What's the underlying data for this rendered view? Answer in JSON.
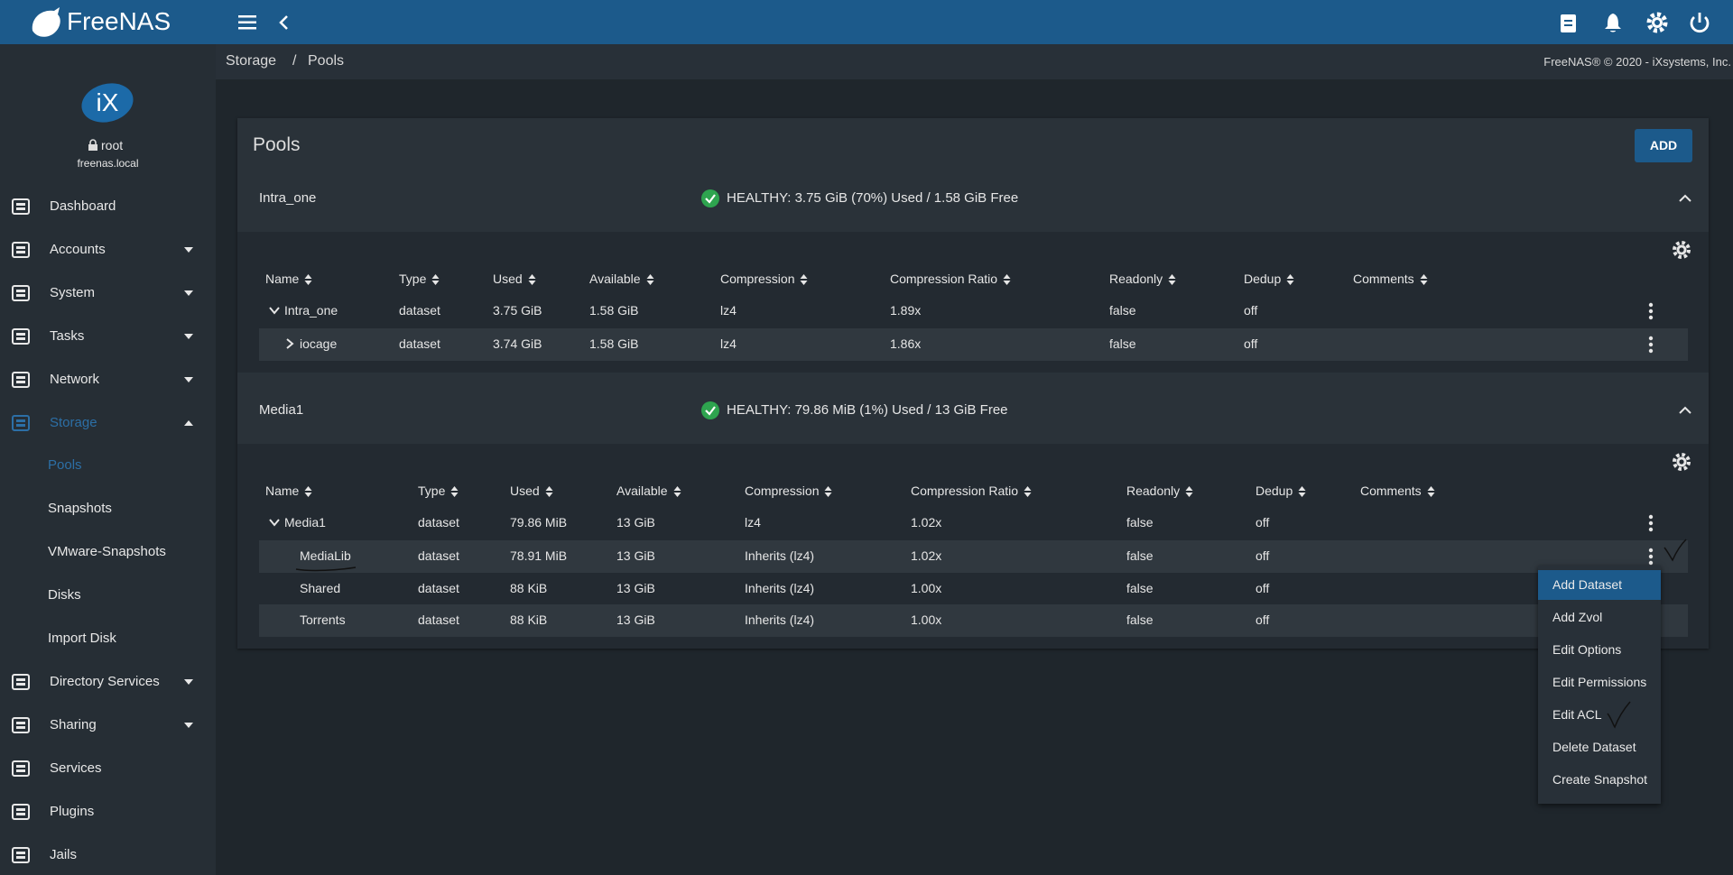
{
  "header": {
    "brand": "FreeNAS"
  },
  "user": {
    "name": "root",
    "host": "freenas.local"
  },
  "nav": [
    {
      "label": "Dashboard"
    },
    {
      "label": "Accounts",
      "caret": "down"
    },
    {
      "label": "System",
      "caret": "down"
    },
    {
      "label": "Tasks",
      "caret": "down"
    },
    {
      "label": "Network",
      "caret": "down"
    },
    {
      "label": "Storage",
      "caret": "up",
      "active": true,
      "children": [
        {
          "label": "Pools",
          "active": true
        },
        {
          "label": "Snapshots"
        },
        {
          "label": "VMware-Snapshots"
        },
        {
          "label": "Disks"
        },
        {
          "label": "Import Disk"
        }
      ]
    },
    {
      "label": "Directory Services",
      "caret": "down"
    },
    {
      "label": "Sharing",
      "caret": "down"
    },
    {
      "label": "Services"
    },
    {
      "label": "Plugins"
    },
    {
      "label": "Jails"
    }
  ],
  "breadcrumb": [
    "Storage",
    "Pools"
  ],
  "copyright": "FreeNAS® © 2020 - iXsystems, Inc.",
  "page": {
    "title": "Pools",
    "add_button": "ADD"
  },
  "table_columns": [
    "Name",
    "Type",
    "Used",
    "Available",
    "Compression",
    "Compression Ratio",
    "Readonly",
    "Dedup",
    "Comments"
  ],
  "pools": [
    {
      "name": "Intra_one",
      "status": "HEALTHY: 3.75 GiB (70%) Used / 1.58 GiB Free",
      "rows": [
        {
          "toggle": "open",
          "cells": [
            "Intra_one",
            "dataset",
            "3.75 GiB",
            "1.58 GiB",
            "lz4",
            "1.89x",
            "false",
            "off"
          ]
        },
        {
          "toggle": "closed",
          "cells": [
            "iocage",
            "dataset",
            "3.74 GiB",
            "1.58 GiB",
            "lz4",
            "1.86x",
            "false",
            "off"
          ]
        }
      ]
    },
    {
      "name": "Media1",
      "status": "HEALTHY: 79.86 MiB (1%) Used / 13 GiB Free",
      "rows": [
        {
          "toggle": "open",
          "cells": [
            "Media1",
            "dataset",
            "79.86 MiB",
            "13 GiB",
            "lz4",
            "1.02x",
            "false",
            "off"
          ]
        },
        {
          "cells": [
            "MediaLib",
            "dataset",
            "78.91 MiB",
            "13 GiB",
            "Inherits (lz4)",
            "1.02x",
            "false",
            "off"
          ]
        },
        {
          "cells": [
            "Shared",
            "dataset",
            "88 KiB",
            "13 GiB",
            "Inherits (lz4)",
            "1.00x",
            "false",
            "off"
          ]
        },
        {
          "cells": [
            "Torrents",
            "dataset",
            "88 KiB",
            "13 GiB",
            "Inherits (lz4)",
            "1.00x",
            "false",
            "off"
          ]
        }
      ]
    }
  ],
  "context_menu": [
    "Add Dataset",
    "Add Zvol",
    "Edit Options",
    "Edit Permissions",
    "Edit ACL",
    "Delete Dataset",
    "Create Snapshot"
  ]
}
